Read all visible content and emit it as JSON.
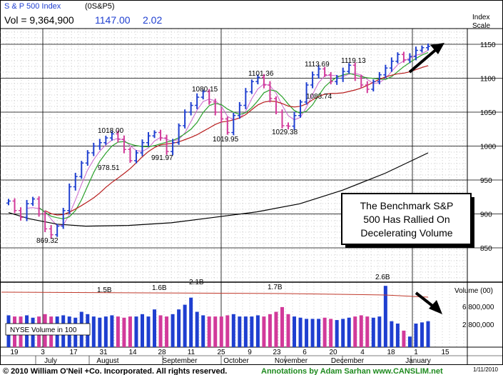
{
  "header": {
    "index_name": "S & P 500 Index",
    "symbol": "(0S&P5)",
    "volume_label": "Vol = 9,364,900",
    "last_price": "1147.00",
    "change": "2.02"
  },
  "axis": {
    "price_scale_title_1": "Index",
    "price_scale_title_2": "Scale",
    "price_ticks": [
      "1150",
      "1100",
      "1050",
      "1000",
      "950",
      "900",
      "850"
    ],
    "volume_scale_title": "Volume (00)",
    "volume_ticks": [
      "6,800,000",
      "2,800,000"
    ],
    "date_ticks": [
      "19",
      "3",
      "17",
      "31",
      "14",
      "28",
      "11",
      "25",
      "9",
      "23",
      "6",
      "20",
      "4",
      "18",
      "1",
      "15"
    ],
    "month_labels": [
      "July",
      "August",
      "September",
      "October",
      "November",
      "December",
      "January"
    ]
  },
  "annotations": {
    "price_labels": [
      "869.32",
      "1018.00",
      "978.51",
      "991.97",
      "1080.15",
      "1019.95",
      "1101.36",
      "1029.38",
      "1113.69",
      "1083.74",
      "1119.13"
    ],
    "volume_labels": [
      "1.5B",
      "1.6B",
      "2.1B",
      "1.7B",
      "2.6B"
    ],
    "callout_text": [
      "The Benchmark S&P",
      "500 Has Rallied On",
      "Decelerating Volume"
    ],
    "nyse_volume_label": "NYSE Volume in 100"
  },
  "footer": {
    "copyright": "© 2010 William O'Neil +Co. Incorporated. All rights reserved.",
    "credit": "Annotations by Adam Sarhan www.CANSLIM.net",
    "date": "1/11/2010"
  },
  "colors": {
    "up_bar": "#1f3fd0",
    "down_bar": "#d23a9a",
    "ma_50": "#2aa02a",
    "ma_200": "#b81e1e",
    "ma_long": "#000000",
    "ma_10": "#cc66cc",
    "volume_avg": "#c0392b",
    "header_blue": "#1f3fd0"
  },
  "chart_data": {
    "type": "bar",
    "title": "S & P 500 Index",
    "x_range": [
      "June 19",
      "January 15"
    ],
    "ylim": [
      830,
      1175
    ],
    "y_scale": "log",
    "grid": true,
    "series": [
      {
        "name": "price",
        "values": [
          919,
          905,
          895,
          915,
          922,
          900,
          878,
          869.32,
          882,
          905,
          940,
          955,
          975,
          990,
          1000,
          1005,
          1012,
          1018,
          1010,
          995,
          978.51,
          990,
          1005,
          1015,
          1020,
          1012,
          991.97,
          1005,
          1030,
          1050,
          1060,
          1072,
          1080.15,
          1065,
          1050,
          1040,
          1019.95,
          1045,
          1060,
          1080,
          1095,
          1101.36,
          1090,
          1070,
          1050,
          1030,
          1029.38,
          1045,
          1065,
          1090,
          1105,
          1113.69,
          1105,
          1095,
          1100,
          1110,
          1119.13,
          1100,
          1090,
          1083.74,
          1095,
          1105,
          1115,
          1125,
          1135,
          1127,
          1132,
          1141,
          1145,
          1147
        ]
      },
      {
        "name": "volume_billions",
        "values": [
          1.35,
          1.3,
          1.3,
          1.35,
          1.25,
          1.3,
          1.4,
          1.3,
          1.3,
          1.35,
          1.3,
          1.25,
          1.5,
          1.4,
          1.3,
          1.25,
          1.3,
          1.35,
          1.3,
          1.25,
          1.3,
          1.3,
          1.4,
          1.3,
          1.6,
          1.35,
          1.3,
          1.4,
          1.6,
          1.8,
          2.1,
          1.5,
          1.35,
          1.3,
          1.3,
          1.3,
          1.35,
          1.4,
          1.3,
          1.3,
          1.3,
          1.35,
          1.3,
          1.4,
          1.5,
          1.7,
          1.4,
          1.3,
          1.25,
          1.2,
          1.2,
          1.2,
          1.25,
          1.2,
          1.15,
          1.2,
          1.25,
          1.3,
          1.35,
          1.3,
          1.25,
          1.3,
          2.6,
          1.1,
          1.0,
          0.7,
          0.45,
          1.0,
          1.05,
          1.1
        ]
      }
    ]
  }
}
